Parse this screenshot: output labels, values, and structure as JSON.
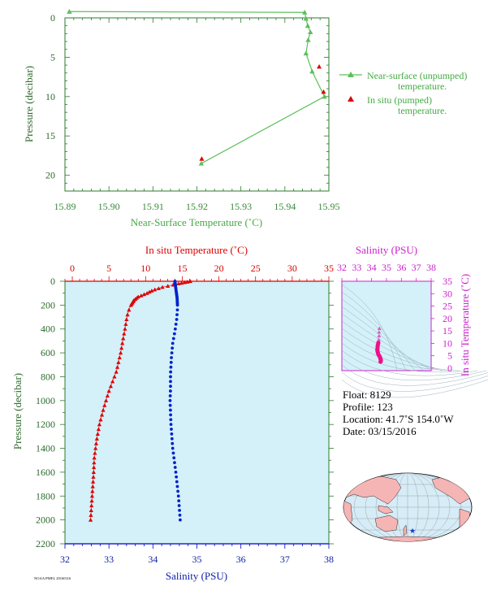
{
  "chart_data": [
    {
      "id": "near-surface-panel",
      "type": "line",
      "xlabel": "Near-Surface Temperature (˚C)",
      "ylabel": "Pressure (decibar)",
      "xlim": [
        15.89,
        15.95
      ],
      "ylim": [
        22,
        0
      ],
      "x_ticks": [
        "15.89",
        "15.90",
        "15.91",
        "15.92",
        "15.93",
        "15.94",
        "15.95"
      ],
      "y_ticks": [
        "0",
        "5",
        "10",
        "15",
        "20"
      ],
      "grid": false,
      "legend_position": "right",
      "series": [
        {
          "name": "Near-surface (unpumped) temperature.",
          "color": "#5cbf5c",
          "marker": "triangle",
          "points": [
            [
              15.891,
              -0.8
            ],
            [
              15.9445,
              -0.7
            ],
            [
              15.9448,
              0.1
            ],
            [
              15.9452,
              1.0
            ],
            [
              15.9458,
              1.8
            ],
            [
              15.9453,
              2.8
            ],
            [
              15.9448,
              4.5
            ],
            [
              15.9462,
              6.8
            ],
            [
              15.949,
              10.0
            ],
            [
              15.921,
              18.5
            ]
          ]
        },
        {
          "name": "In situ (pumped) temperature.",
          "color": "#dd0000",
          "marker": "triangle",
          "points": [
            [
              15.9478,
              6.2
            ],
            [
              15.9488,
              9.4
            ],
            [
              15.9211,
              17.9
            ]
          ]
        }
      ]
    },
    {
      "id": "profile-panel",
      "type": "scatter",
      "x_top_label": "In situ Temperature (˚C)",
      "x_bottom_label": "Salinity (PSU)",
      "ylabel": "Pressure (decibar)",
      "x_top_lim": [
        -1,
        35
      ],
      "x_bottom_lim": [
        32,
        38
      ],
      "ylim": [
        2200,
        0
      ],
      "x_top_ticks": [
        "0",
        "5",
        "10",
        "15",
        "20",
        "25",
        "30",
        "35"
      ],
      "x_bottom_ticks": [
        "32",
        "33",
        "34",
        "35",
        "36",
        "37",
        "38"
      ],
      "y_ticks": [
        "0",
        "200",
        "400",
        "600",
        "800",
        "1000",
        "1200",
        "1400",
        "1600",
        "1800",
        "2000",
        "2200"
      ],
      "background": "#d4f0f8",
      "series": [
        {
          "name": "In situ Temperature",
          "color": "#dd0000",
          "marker": "triangle",
          "profile": [
            [
              16.1,
              0
            ],
            [
              14.5,
              20
            ],
            [
              12.3,
              50
            ],
            [
              11.0,
              75
            ],
            [
              10.2,
              100
            ],
            [
              9.0,
              130
            ],
            [
              8.4,
              160
            ],
            [
              8.0,
              200
            ],
            [
              7.6,
              260
            ],
            [
              7.4,
              320
            ],
            [
              7.25,
              380
            ],
            [
              7.0,
              460
            ],
            [
              6.6,
              600
            ],
            [
              6.0,
              760
            ],
            [
              5.0,
              920
            ],
            [
              4.3,
              1060
            ],
            [
              3.7,
              1200
            ],
            [
              3.3,
              1340
            ],
            [
              3.0,
              1480
            ],
            [
              2.9,
              1620
            ],
            [
              2.75,
              1760
            ],
            [
              2.6,
              1900
            ],
            [
              2.5,
              2000
            ]
          ]
        },
        {
          "name": "Salinity",
          "color": "#0022cc",
          "marker": "dot",
          "profile": [
            [
              34.5,
              0
            ],
            [
              34.52,
              60
            ],
            [
              34.55,
              140
            ],
            [
              34.56,
              220
            ],
            [
              34.54,
              320
            ],
            [
              34.5,
              420
            ],
            [
              34.45,
              520
            ],
            [
              34.42,
              640
            ],
            [
              34.4,
              780
            ],
            [
              34.4,
              900
            ],
            [
              34.39,
              1000
            ],
            [
              34.41,
              1200
            ],
            [
              34.45,
              1400
            ],
            [
              34.52,
              1600
            ],
            [
              34.58,
              1800
            ],
            [
              34.62,
              2000
            ]
          ]
        }
      ]
    },
    {
      "id": "ts-diagram",
      "type": "scatter",
      "x_top_label": "Salinity (PSU)",
      "ylabel": "In situ Temperature (˚C)",
      "xlim": [
        32,
        38
      ],
      "ylim": [
        -1,
        35
      ],
      "x_ticks": [
        "32",
        "33",
        "34",
        "35",
        "36",
        "37",
        "38"
      ],
      "y_ticks": [
        "0",
        "5",
        "10",
        "15",
        "20",
        "25",
        "30",
        "35"
      ],
      "color": "#ee1188",
      "points": [
        [
          34.52,
          16.0
        ],
        [
          34.5,
          14.5
        ],
        [
          34.5,
          13.0
        ],
        [
          34.48,
          11.5
        ],
        [
          34.45,
          10.2
        ],
        [
          34.42,
          9.4
        ],
        [
          34.4,
          8.7
        ],
        [
          34.4,
          8.0
        ],
        [
          34.38,
          7.4
        ],
        [
          34.4,
          6.8
        ],
        [
          34.42,
          6.2
        ],
        [
          34.45,
          5.6
        ],
        [
          34.5,
          5.1
        ],
        [
          34.55,
          4.6
        ],
        [
          34.58,
          4.1
        ],
        [
          34.6,
          3.7
        ],
        [
          34.62,
          3.3
        ],
        [
          34.62,
          2.9
        ],
        [
          34.6,
          2.6
        ]
      ]
    }
  ],
  "legend": {
    "near_surface_line1": "Near-surface (unpumped)",
    "near_surface_line2": "temperature.",
    "in_situ_line1": "In situ (pumped)",
    "in_situ_line2": "temperature."
  },
  "info": {
    "float": "Float:  8129",
    "profile": "Profile:  123",
    "location": "Location:  41.7˚S  154.0˚W",
    "date": "Date:  03/15/2016"
  },
  "footer_note": "NOAA/PMEL 20160316",
  "map": {
    "marker": "★",
    "marker_color": "#1133cc"
  }
}
